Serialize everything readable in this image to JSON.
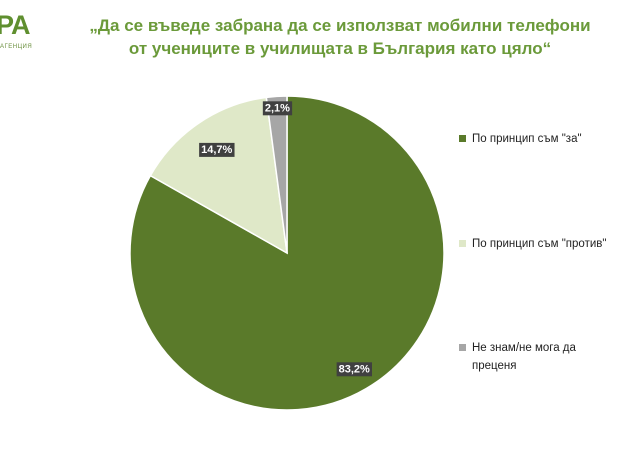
{
  "logo": {
    "mark": "PA",
    "sub": "АГЕНЦИЯ"
  },
  "chart_data": {
    "type": "pie",
    "title_line1": "„Да се въведе забрана да се използват мобилни телефони",
    "title_line2": "от учениците в училищата в България като цяло“",
    "slices": [
      {
        "label": "По принцип съм \"за\"",
        "value": 83.2,
        "display": "83,2%",
        "color": "#5a7a2a"
      },
      {
        "label": "По принцип съм \"против\"",
        "value": 14.7,
        "display": "14,7%",
        "color": "#dfe8c8"
      },
      {
        "label": "Не знам/не мога да преценя",
        "value": 2.1,
        "display": "2,1%",
        "color": "#a6a6a6"
      }
    ],
    "legend_position": "right"
  }
}
